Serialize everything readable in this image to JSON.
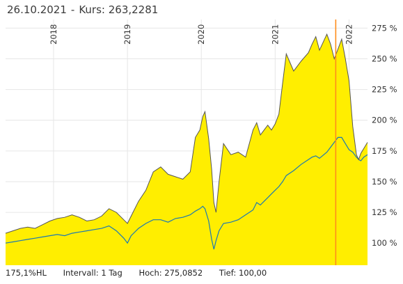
{
  "header": {
    "date": "26.10.2021",
    "separator": "-",
    "price_label": "Kurs:",
    "price_value": "263,2281"
  },
  "footer": {
    "item1": "175,1%HL",
    "interval_label": "Intervall:",
    "interval_value": "1 Tag",
    "high_label": "Hoch:",
    "high_value": "275,0852",
    "low_label": "Tief:",
    "low_value": "100,00"
  },
  "colors": {
    "area_fill": "#ffee00",
    "main_line": "#555555",
    "benchmark_line": "#1a78b4",
    "cursor_line": "#ff8c1a",
    "grid": "#e6e6e6"
  },
  "chart_data": {
    "type": "area",
    "xlabel": "",
    "ylabel": "",
    "x_range": [
      2017.35,
      2022.25
    ],
    "ylim": [
      82,
      282
    ],
    "y_ticks": [
      100,
      125,
      150,
      175,
      200,
      225,
      250,
      275
    ],
    "y_tick_labels": [
      "100 %",
      "125 %",
      "150 %",
      "175 %",
      "200 %",
      "225 %",
      "250 %",
      "275 %"
    ],
    "x_ticks": [
      2018,
      2019,
      2020,
      2021,
      2022
    ],
    "x_tick_labels": [
      "2018",
      "2019",
      "2020",
      "2021",
      "2022"
    ],
    "cursor_x": 2021.82,
    "grid": true,
    "series": [
      {
        "x": [
          2017.35,
          2017.45,
          2017.55,
          2017.65,
          2017.75,
          2017.85,
          2017.95,
          2018.05,
          2018.15,
          2018.25,
          2018.35,
          2018.45,
          2018.55,
          2018.65,
          2018.75,
          2018.85,
          2018.95,
          2019.0,
          2019.05,
          2019.15,
          2019.25,
          2019.35,
          2019.45,
          2019.55,
          2019.65,
          2019.75,
          2019.85,
          2019.92,
          2019.98,
          2020.02,
          2020.05,
          2020.1,
          2020.14,
          2020.17,
          2020.2,
          2020.24,
          2020.3,
          2020.4,
          2020.5,
          2020.6,
          2020.7,
          2020.75,
          2020.8,
          2020.9,
          2020.95,
          2021.0,
          2021.05,
          2021.1,
          2021.15,
          2021.25,
          2021.35,
          2021.45,
          2021.5,
          2021.55,
          2021.6,
          2021.7,
          2021.75,
          2021.8,
          2021.85,
          2021.9,
          2021.95,
          2022.0,
          2022.05,
          2022.1,
          2022.13,
          2022.16,
          2022.2,
          2022.25
        ],
        "y": [
          108,
          110,
          112,
          113,
          112,
          115,
          118,
          120,
          121,
          123,
          121,
          118,
          119,
          122,
          128,
          125,
          119,
          116,
          122,
          134,
          143,
          158,
          162,
          156,
          154,
          152,
          158,
          186,
          192,
          203,
          207,
          185,
          160,
          133,
          125,
          150,
          181,
          172,
          174,
          170,
          192,
          198,
          188,
          196,
          192,
          197,
          205,
          230,
          254,
          240,
          248,
          255,
          262,
          268,
          257,
          270,
          262,
          250,
          258,
          266,
          250,
          232,
          195,
          172,
          168,
          173,
          177,
          182
        ]
      },
      {
        "x": [
          2017.35,
          2017.45,
          2017.55,
          2017.65,
          2017.75,
          2017.85,
          2017.95,
          2018.05,
          2018.15,
          2018.25,
          2018.35,
          2018.45,
          2018.55,
          2018.65,
          2018.75,
          2018.85,
          2018.95,
          2019.0,
          2019.05,
          2019.15,
          2019.25,
          2019.35,
          2019.45,
          2019.55,
          2019.65,
          2019.75,
          2019.85,
          2019.92,
          2019.98,
          2020.02,
          2020.05,
          2020.1,
          2020.14,
          2020.17,
          2020.2,
          2020.24,
          2020.3,
          2020.4,
          2020.5,
          2020.6,
          2020.7,
          2020.75,
          2020.8,
          2020.9,
          2020.95,
          2021.0,
          2021.05,
          2021.1,
          2021.15,
          2021.25,
          2021.35,
          2021.45,
          2021.5,
          2021.55,
          2021.6,
          2021.7,
          2021.75,
          2021.8,
          2021.85,
          2021.9,
          2021.95,
          2022.0,
          2022.05,
          2022.1,
          2022.13,
          2022.16,
          2022.2,
          2022.25
        ],
        "y": [
          100,
          101,
          102,
          103,
          104,
          105,
          106,
          107,
          106,
          108,
          109,
          110,
          111,
          112,
          114,
          110,
          104,
          100,
          106,
          112,
          116,
          119,
          119,
          117,
          120,
          121,
          123,
          126,
          128,
          130,
          128,
          118,
          103,
          95,
          102,
          110,
          116,
          117,
          119,
          123,
          127,
          133,
          131,
          137,
          140,
          143,
          146,
          150,
          155,
          159,
          164,
          168,
          170,
          171,
          169,
          174,
          178,
          182,
          186,
          186,
          181,
          176,
          174,
          170,
          168,
          167,
          170,
          172
        ]
      }
    ]
  }
}
